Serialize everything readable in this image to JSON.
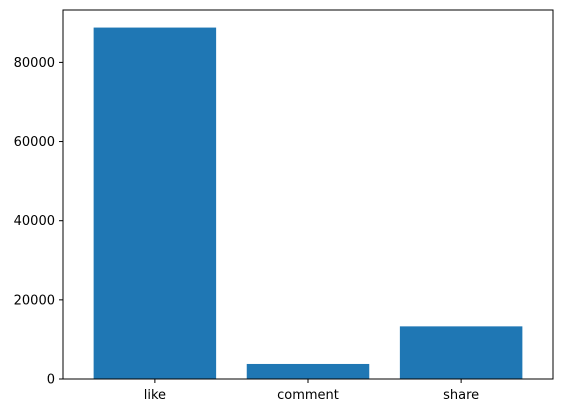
{
  "chart_data": {
    "type": "bar",
    "categories": [
      "like",
      "comment",
      "share"
    ],
    "values": [
      88800,
      3800,
      13300
    ],
    "ylim": [
      0,
      93240
    ],
    "yticks": [
      0,
      20000,
      40000,
      60000,
      80000
    ],
    "ytick_labels": [
      "0",
      "20000",
      "40000",
      "60000",
      "80000"
    ],
    "grid": false,
    "bar_color": "#1f77b4",
    "title": "",
    "xlabel": "",
    "ylabel": ""
  }
}
